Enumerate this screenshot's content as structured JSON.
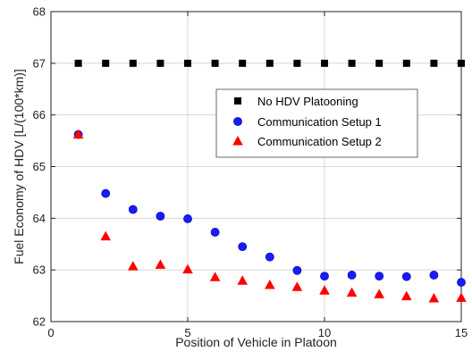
{
  "chart_data": {
    "type": "scatter",
    "title": "",
    "xlabel": "Position of Vehicle in Platoon",
    "ylabel": "Fuel Economy of HDV [L/(100*km)]",
    "xlim": [
      0,
      15
    ],
    "ylim": [
      62,
      68
    ],
    "xticks": [
      0,
      5,
      10,
      15
    ],
    "yticks": [
      62,
      63,
      64,
      65,
      66,
      67,
      68
    ],
    "grid": true,
    "legend_position": "upper-right",
    "x": [
      1,
      2,
      3,
      4,
      5,
      6,
      7,
      8,
      9,
      10,
      11,
      12,
      13,
      14,
      15
    ],
    "series": [
      {
        "name": "No HDV Platooning",
        "marker": "square",
        "color": "#000000",
        "values": [
          67.0,
          67.0,
          67.0,
          67.0,
          67.0,
          67.0,
          67.0,
          67.0,
          67.0,
          67.0,
          67.0,
          67.0,
          67.0,
          67.0,
          67.0
        ]
      },
      {
        "name": "Communication Setup 1",
        "marker": "circle",
        "color": "#1a1aff",
        "values": [
          65.62,
          64.48,
          64.17,
          64.04,
          63.99,
          63.73,
          63.45,
          63.25,
          62.99,
          62.88,
          62.9,
          62.88,
          62.87,
          62.9,
          62.76
        ]
      },
      {
        "name": "Communication Setup 2",
        "marker": "triangle",
        "color": "#ff0000",
        "values": [
          65.62,
          63.65,
          63.07,
          63.1,
          63.01,
          62.86,
          62.79,
          62.71,
          62.67,
          62.6,
          62.56,
          62.53,
          62.49,
          62.45,
          62.46
        ]
      }
    ]
  }
}
